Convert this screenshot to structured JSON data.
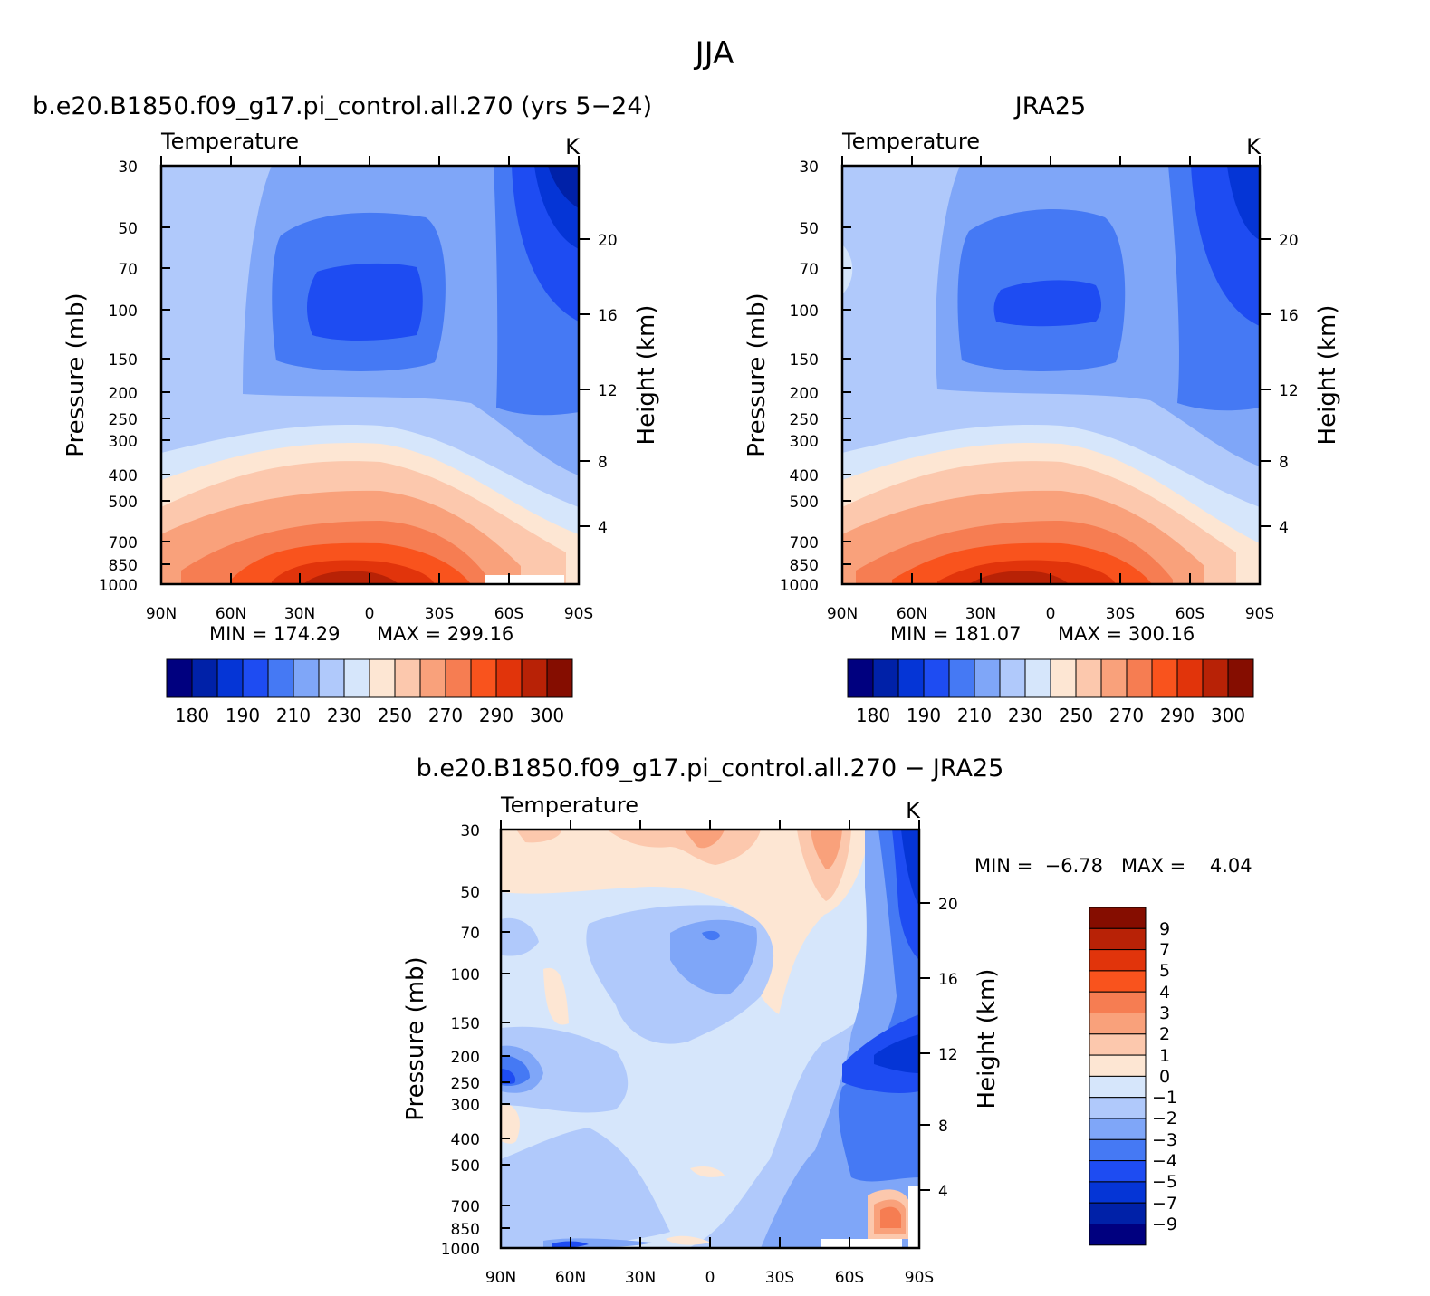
{
  "figure_title": "JJA",
  "chart_data": [
    {
      "id": "model",
      "type": "contour",
      "title": "b.e20.B1850.f09_g17.pi_control.all.270 (yrs 5−24)",
      "subtitle_left": "Temperature",
      "units": "K",
      "xlabel": "",
      "ylabel_left": "Pressure (mb)",
      "ylabel_right": "Height (km)",
      "x_ticks": [
        "90N",
        "60N",
        "30N",
        "0",
        "30S",
        "60S",
        "90S"
      ],
      "y_ticks": [
        "30",
        "50",
        "70",
        "100",
        "150",
        "200",
        "250",
        "300",
        "400",
        "500",
        "700",
        "850",
        "1000"
      ],
      "y_right_ticks": [
        "4",
        "8",
        "12",
        "16",
        "20"
      ],
      "min_label": "MIN = 174.29",
      "max_label": "MAX = 299.16",
      "min": 174.29,
      "max": 299.16,
      "colorbar_levels": [
        175,
        180,
        185,
        190,
        200,
        210,
        220,
        230,
        240,
        250,
        260,
        270,
        280,
        290,
        295,
        300
      ],
      "colorbar_labels": [
        "180",
        "190",
        "210",
        "230",
        "250",
        "270",
        "290",
        "300"
      ],
      "ylim": [
        1000,
        30
      ]
    },
    {
      "id": "obs",
      "type": "contour",
      "title": "JRA25",
      "subtitle_left": "Temperature",
      "units": "K",
      "xlabel": "",
      "ylabel_left": "Pressure (mb)",
      "ylabel_right": "Height (km)",
      "x_ticks": [
        "90N",
        "60N",
        "30N",
        "0",
        "30S",
        "60S",
        "90S"
      ],
      "y_ticks": [
        "30",
        "50",
        "70",
        "100",
        "150",
        "200",
        "250",
        "300",
        "400",
        "500",
        "700",
        "850",
        "1000"
      ],
      "y_right_ticks": [
        "4",
        "8",
        "12",
        "16",
        "20"
      ],
      "min_label": "MIN = 181.07",
      "max_label": "MAX = 300.16",
      "min": 181.07,
      "max": 300.16,
      "colorbar_levels": [
        175,
        180,
        185,
        190,
        200,
        210,
        220,
        230,
        240,
        250,
        260,
        270,
        280,
        290,
        295,
        300
      ],
      "colorbar_labels": [
        "180",
        "190",
        "210",
        "230",
        "250",
        "270",
        "290",
        "300"
      ],
      "ylim": [
        1000,
        30
      ]
    },
    {
      "id": "diff",
      "type": "contour",
      "title": "b.e20.B1850.f09_g17.pi_control.all.270 − JRA25",
      "subtitle_left": "Temperature",
      "units": "K",
      "xlabel": "",
      "ylabel_left": "Pressure (mb)",
      "ylabel_right": "Height (km)",
      "x_ticks": [
        "90N",
        "60N",
        "30N",
        "0",
        "30S",
        "60S",
        "90S"
      ],
      "y_ticks": [
        "30",
        "50",
        "70",
        "100",
        "150",
        "200",
        "250",
        "300",
        "400",
        "500",
        "700",
        "850",
        "1000"
      ],
      "y_right_ticks": [
        "4",
        "8",
        "12",
        "16",
        "20"
      ],
      "minmax_label": "MIN =  −6.78   MAX =    4.04",
      "min": -6.78,
      "max": 4.04,
      "colorbar_labels": [
        "9",
        "7",
        "5",
        "4",
        "3",
        "2",
        "1",
        "0",
        "−1",
        "−2",
        "−3",
        "−4",
        "−5",
        "−7",
        "−9"
      ],
      "ylim": [
        1000,
        30
      ]
    }
  ],
  "colors": {
    "abs_scale": [
      "#00007f",
      "#0021a8",
      "#0535d6",
      "#1e4cf2",
      "#4579f4",
      "#7fa6f8",
      "#b0c9fb",
      "#d6e6fb",
      "#fde6d3",
      "#fcc8ad",
      "#f9a17b",
      "#f67d52",
      "#f9531d",
      "#e1340b",
      "#b82206",
      "#850d00"
    ],
    "diff_scale": [
      "#850d00",
      "#b82206",
      "#e1340b",
      "#f9531d",
      "#f67d52",
      "#f9a17b",
      "#fcc8ad",
      "#fde6d3",
      "#d6e6fb",
      "#b0c9fb",
      "#7fa6f8",
      "#4579f4",
      "#1e4cf2",
      "#0535d6",
      "#0021a8",
      "#00007f"
    ]
  }
}
